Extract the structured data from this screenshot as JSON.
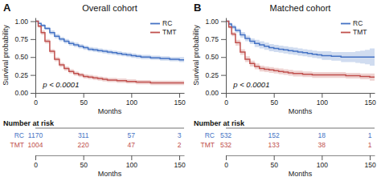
{
  "chart_data": [
    {
      "type": "step",
      "title": "Overall cohort",
      "panel": "A",
      "annotations": [
        "p < 0.0001"
      ],
      "xlabel": "Months",
      "ylabel": "Survival probability",
      "xlim": [
        0,
        155
      ],
      "ylim": [
        0.0,
        1.05
      ],
      "xticks": [
        0,
        50,
        100,
        150
      ],
      "yticks": [
        {
          "value": 0.0,
          "label": "0.00"
        },
        0.25,
        {
          "value": 0.5,
          "label": "0.50"
        },
        0.75,
        {
          "value": 1.0,
          "label": "1.00"
        }
      ],
      "grid": false,
      "legend": "top-right",
      "x": [
        0,
        3,
        6,
        10,
        15,
        20,
        25,
        30,
        35,
        40,
        45,
        50,
        55,
        60,
        65,
        70,
        75,
        80,
        85,
        90,
        95,
        100,
        105,
        110,
        115,
        120,
        125,
        130,
        135,
        140,
        145,
        150,
        155
      ],
      "series": [
        {
          "name": "RC",
          "color": "#4472C4",
          "values": [
            1.0,
            0.97,
            0.94,
            0.9,
            0.84,
            0.79,
            0.75,
            0.72,
            0.69,
            0.67,
            0.65,
            0.63,
            0.61,
            0.6,
            0.59,
            0.58,
            0.57,
            0.56,
            0.55,
            0.54,
            0.53,
            0.52,
            0.51,
            0.5,
            0.5,
            0.49,
            0.49,
            0.48,
            0.48,
            0.47,
            0.47,
            0.46,
            0.46
          ],
          "ci_upper": [
            1.0,
            0.98,
            0.96,
            0.92,
            0.87,
            0.82,
            0.78,
            0.75,
            0.72,
            0.7,
            0.68,
            0.66,
            0.64,
            0.63,
            0.62,
            0.61,
            0.6,
            0.59,
            0.58,
            0.57,
            0.56,
            0.55,
            0.54,
            0.53,
            0.53,
            0.52,
            0.52,
            0.51,
            0.51,
            0.5,
            0.5,
            0.5,
            0.5
          ],
          "ci_lower": [
            1.0,
            0.96,
            0.92,
            0.88,
            0.81,
            0.76,
            0.72,
            0.69,
            0.66,
            0.64,
            0.62,
            0.6,
            0.58,
            0.57,
            0.56,
            0.55,
            0.54,
            0.53,
            0.52,
            0.51,
            0.5,
            0.49,
            0.48,
            0.47,
            0.47,
            0.46,
            0.46,
            0.45,
            0.45,
            0.44,
            0.44,
            0.43,
            0.43
          ]
        },
        {
          "name": "TMT",
          "color": "#C0504D",
          "values": [
            1.0,
            0.93,
            0.84,
            0.72,
            0.58,
            0.47,
            0.39,
            0.34,
            0.3,
            0.27,
            0.25,
            0.23,
            0.22,
            0.21,
            0.2,
            0.19,
            0.18,
            0.18,
            0.17,
            0.17,
            0.16,
            0.16,
            0.15,
            0.15,
            0.15,
            0.14,
            0.14,
            0.14,
            0.14,
            0.14,
            0.14,
            0.14,
            0.14
          ],
          "ci_upper": [
            1.0,
            0.95,
            0.87,
            0.75,
            0.61,
            0.5,
            0.42,
            0.37,
            0.33,
            0.3,
            0.28,
            0.26,
            0.25,
            0.24,
            0.23,
            0.22,
            0.21,
            0.21,
            0.2,
            0.2,
            0.19,
            0.19,
            0.18,
            0.18,
            0.18,
            0.17,
            0.17,
            0.17,
            0.17,
            0.17,
            0.17,
            0.17,
            0.17
          ],
          "ci_lower": [
            1.0,
            0.91,
            0.81,
            0.69,
            0.55,
            0.44,
            0.36,
            0.31,
            0.27,
            0.24,
            0.22,
            0.2,
            0.19,
            0.18,
            0.17,
            0.16,
            0.15,
            0.15,
            0.14,
            0.14,
            0.13,
            0.13,
            0.12,
            0.12,
            0.12,
            0.11,
            0.11,
            0.11,
            0.11,
            0.11,
            0.11,
            0.11,
            0.11
          ]
        }
      ]
    },
    {
      "type": "table",
      "title": "Number at risk",
      "xlabel": "Months",
      "xlim": [
        0,
        155
      ],
      "xticks": [
        0,
        50,
        100,
        150
      ],
      "x": [
        0,
        50,
        100,
        150
      ],
      "series": [
        {
          "name": "RC",
          "color": "#4472C4",
          "values": [
            1170,
            311,
            57,
            3
          ]
        },
        {
          "name": "TMT",
          "color": "#C0504D",
          "values": [
            1004,
            220,
            47,
            2
          ]
        }
      ]
    },
    {
      "type": "step",
      "title": "Matched cohort",
      "panel": "B",
      "annotations": [
        "p < 0.0001"
      ],
      "xlabel": "Months",
      "ylabel": "Survival probability",
      "xlim": [
        0,
        155
      ],
      "ylim": [
        0.0,
        1.05
      ],
      "xticks": [
        0,
        50,
        100,
        150
      ],
      "yticks": [
        {
          "value": 0.0,
          "label": "0.00"
        },
        0.25,
        {
          "value": 0.5,
          "label": "0.50"
        },
        0.75,
        {
          "value": 1.0,
          "label": "1.00"
        }
      ],
      "grid": false,
      "legend": "top-right",
      "x": [
        0,
        3,
        6,
        10,
        15,
        20,
        25,
        30,
        35,
        40,
        45,
        50,
        55,
        60,
        65,
        70,
        75,
        80,
        85,
        90,
        95,
        100,
        105,
        110,
        115,
        120,
        125,
        130,
        135,
        140,
        145,
        150,
        155
      ],
      "series": [
        {
          "name": "RC",
          "color": "#4472C4",
          "values": [
            1.0,
            0.96,
            0.92,
            0.87,
            0.81,
            0.76,
            0.72,
            0.69,
            0.67,
            0.65,
            0.63,
            0.62,
            0.61,
            0.6,
            0.59,
            0.58,
            0.57,
            0.56,
            0.55,
            0.54,
            0.53,
            0.52,
            0.52,
            0.51,
            0.51,
            0.5,
            0.5,
            0.5,
            0.5,
            0.5,
            0.5,
            0.5,
            0.5
          ],
          "ci_upper": [
            1.0,
            0.98,
            0.95,
            0.9,
            0.85,
            0.8,
            0.76,
            0.74,
            0.72,
            0.7,
            0.68,
            0.67,
            0.66,
            0.65,
            0.64,
            0.63,
            0.62,
            0.61,
            0.6,
            0.59,
            0.58,
            0.58,
            0.58,
            0.57,
            0.57,
            0.57,
            0.57,
            0.57,
            0.58,
            0.59,
            0.6,
            0.62,
            0.62
          ],
          "ci_lower": [
            1.0,
            0.94,
            0.89,
            0.84,
            0.77,
            0.72,
            0.68,
            0.64,
            0.62,
            0.6,
            0.58,
            0.57,
            0.56,
            0.55,
            0.54,
            0.53,
            0.52,
            0.51,
            0.5,
            0.49,
            0.48,
            0.46,
            0.46,
            0.45,
            0.45,
            0.43,
            0.43,
            0.43,
            0.42,
            0.41,
            0.4,
            0.38,
            0.38
          ]
        },
        {
          "name": "TMT",
          "color": "#C0504D",
          "values": [
            1.0,
            0.92,
            0.82,
            0.7,
            0.57,
            0.47,
            0.41,
            0.37,
            0.34,
            0.33,
            0.32,
            0.31,
            0.3,
            0.29,
            0.28,
            0.27,
            0.27,
            0.26,
            0.26,
            0.25,
            0.25,
            0.25,
            0.25,
            0.25,
            0.25,
            0.25,
            0.24,
            0.24,
            0.24,
            0.23,
            0.23,
            0.22,
            0.22
          ],
          "ci_upper": [
            1.0,
            0.94,
            0.85,
            0.74,
            0.61,
            0.51,
            0.45,
            0.41,
            0.38,
            0.37,
            0.36,
            0.35,
            0.34,
            0.33,
            0.32,
            0.31,
            0.31,
            0.3,
            0.3,
            0.29,
            0.29,
            0.29,
            0.29,
            0.29,
            0.29,
            0.29,
            0.28,
            0.28,
            0.28,
            0.27,
            0.27,
            0.27,
            0.27
          ],
          "ci_lower": [
            1.0,
            0.9,
            0.79,
            0.66,
            0.53,
            0.43,
            0.37,
            0.33,
            0.3,
            0.29,
            0.28,
            0.27,
            0.26,
            0.25,
            0.24,
            0.23,
            0.23,
            0.22,
            0.22,
            0.21,
            0.21,
            0.21,
            0.21,
            0.21,
            0.21,
            0.21,
            0.2,
            0.2,
            0.2,
            0.19,
            0.19,
            0.17,
            0.17
          ]
        }
      ]
    },
    {
      "type": "table",
      "title": "Number at risk",
      "xlabel": "Months",
      "xlim": [
        0,
        155
      ],
      "xticks": [
        0,
        50,
        100,
        150
      ],
      "x": [
        0,
        50,
        100,
        150
      ],
      "series": [
        {
          "name": "RC",
          "color": "#4472C4",
          "values": [
            532,
            152,
            18,
            1
          ]
        },
        {
          "name": "TMT",
          "color": "#C0504D",
          "values": [
            532,
            133,
            38,
            1
          ]
        }
      ]
    }
  ]
}
